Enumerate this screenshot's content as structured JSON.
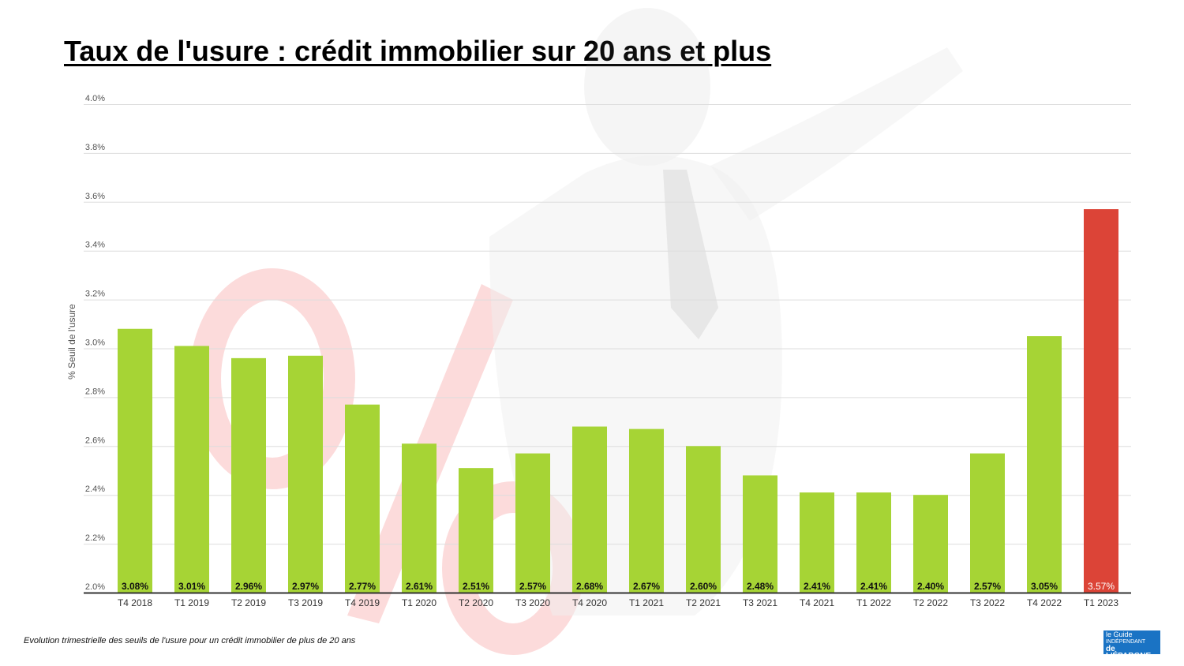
{
  "chart_data": {
    "type": "bar",
    "title": "Taux de l'usure : crédit immobilier sur 20 ans et plus",
    "ylabel": "% Seuil de l'usure",
    "xlabel": "",
    "ylim": [
      2.0,
      4.0
    ],
    "yticks": [
      "2.0%",
      "2.2%",
      "2.4%",
      "2.6%",
      "2.8%",
      "3.0%",
      "3.2%",
      "3.4%",
      "3.6%",
      "3.8%",
      "4.0%"
    ],
    "grid": true,
    "categories": [
      "T4 2018",
      "T1 2019",
      "T2 2019",
      "T3 2019",
      "T4 2019",
      "T1 2020",
      "T2 2020",
      "T3 2020",
      "T4 2020",
      "T1 2021",
      "T2 2021",
      "T3 2021",
      "T4 2021",
      "T1 2022",
      "T2 2022",
      "T3 2022",
      "T4 2022",
      "T1 2023"
    ],
    "values": [
      3.08,
      3.01,
      2.96,
      2.97,
      2.77,
      2.61,
      2.51,
      2.57,
      2.68,
      2.67,
      2.6,
      2.48,
      2.41,
      2.41,
      2.4,
      2.57,
      3.05,
      3.57
    ],
    "data_labels": [
      "3.08%",
      "3.01%",
      "2.96%",
      "2.97%",
      "2.77%",
      "2.61%",
      "2.51%",
      "2.57%",
      "2.68%",
      "2.67%",
      "2.60%",
      "2.48%",
      "2.41%",
      "2.41%",
      "2.40%",
      "2.57%",
      "3.05%",
      "3.57%"
    ],
    "colors": {
      "default": "#a6d435",
      "highlight": "#dc4437",
      "highlight_index": 17
    }
  },
  "caption": "Evolution trimestrielle des seuils de l'usure pour un crédit immobilier de plus de 20 ans",
  "logo": {
    "line1": "le Guide",
    "line2": "INDÉPENDANT",
    "line3": "de L'ÉPARGNE"
  }
}
